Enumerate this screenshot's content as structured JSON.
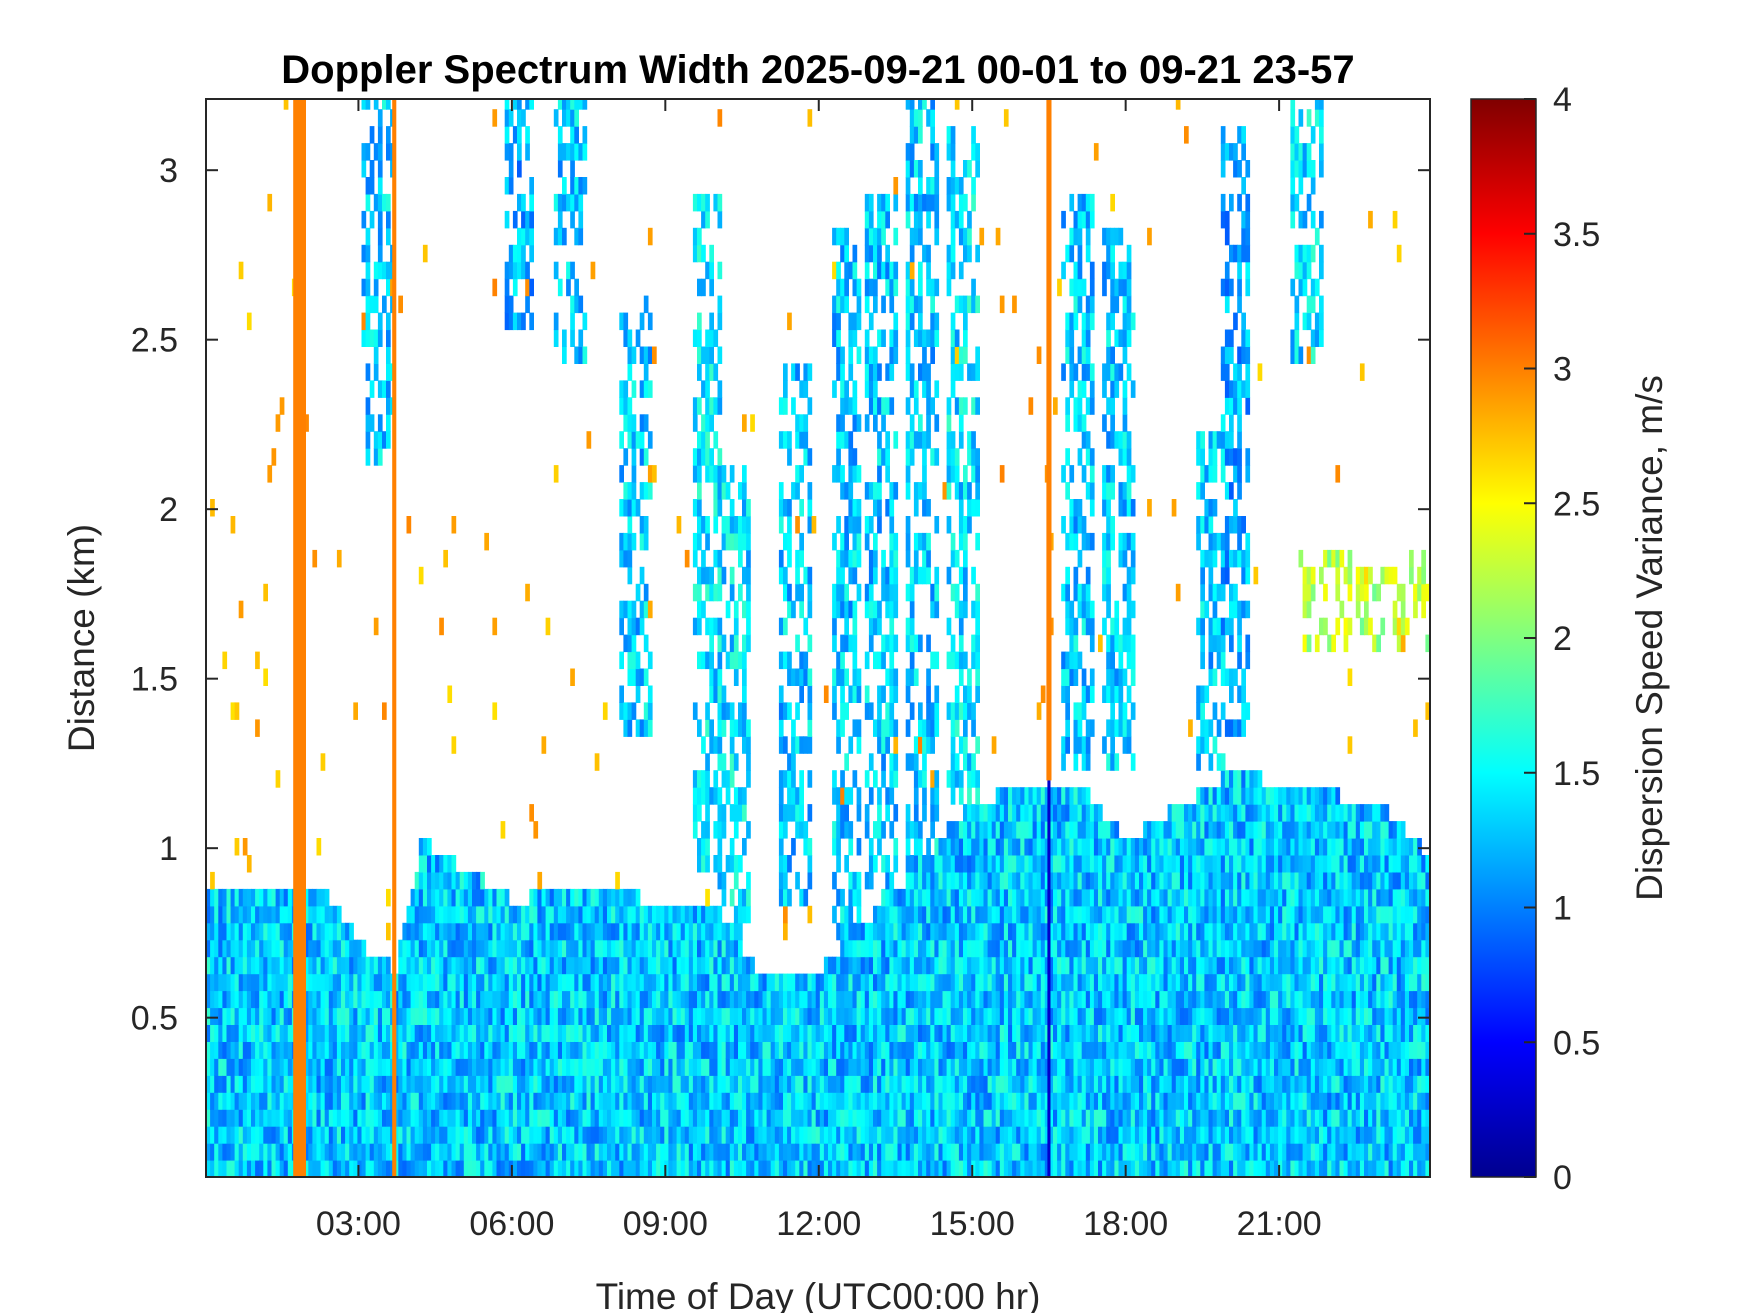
{
  "chart_data": {
    "type": "heatmap",
    "title": "Doppler Spectrum Width 2025-09-21 00-01 to 09-21 23-57",
    "xlabel": "Time of Day (UTC00:00 hr)",
    "ylabel": "Distance (km)",
    "colorbar_label": "Dispersion Speed Variance, m/s",
    "colormap": "jet",
    "xlim_hours": [
      0.02,
      23.95
    ],
    "ylim_km": [
      0.03,
      3.21
    ],
    "clim": [
      0,
      4
    ],
    "x_ticks": [
      {
        "value": 3,
        "label": "03:00"
      },
      {
        "value": 6,
        "label": "06:00"
      },
      {
        "value": 9,
        "label": "09:00"
      },
      {
        "value": 12,
        "label": "12:00"
      },
      {
        "value": 15,
        "label": "15:00"
      },
      {
        "value": 18,
        "label": "18:00"
      },
      {
        "value": 21,
        "label": "21:00"
      }
    ],
    "y_ticks": [
      {
        "value": 0.5,
        "label": "0.5"
      },
      {
        "value": 1,
        "label": "1"
      },
      {
        "value": 1.5,
        "label": "1.5"
      },
      {
        "value": 2,
        "label": "2"
      },
      {
        "value": 2.5,
        "label": "2.5"
      },
      {
        "value": 3,
        "label": "3"
      }
    ],
    "colorbar_ticks": [
      {
        "value": 0,
        "label": "0"
      },
      {
        "value": 0.5,
        "label": "0.5"
      },
      {
        "value": 1,
        "label": "1"
      },
      {
        "value": 1.5,
        "label": "1.5"
      },
      {
        "value": 2,
        "label": "2"
      },
      {
        "value": 2.5,
        "label": "2.5"
      },
      {
        "value": 3,
        "label": "3"
      },
      {
        "value": 3.5,
        "label": "3.5"
      },
      {
        "value": 4,
        "label": "4"
      }
    ],
    "typical_value_below_boundary_layer": 1.3,
    "boundary_layer_top_km": [
      {
        "t": 0.0,
        "h": 0.88
      },
      {
        "t": 1.5,
        "h": 0.88
      },
      {
        "t": 2.3,
        "h": 0.84
      },
      {
        "t": 3.2,
        "h": 0.66
      },
      {
        "t": 3.7,
        "h": 0.62
      },
      {
        "t": 4.2,
        "h": 1.0
      },
      {
        "t": 5.0,
        "h": 0.92
      },
      {
        "t": 6.0,
        "h": 0.82
      },
      {
        "t": 7.0,
        "h": 0.85
      },
      {
        "t": 8.0,
        "h": 0.87
      },
      {
        "t": 9.0,
        "h": 0.78
      },
      {
        "t": 10.0,
        "h": 0.8
      },
      {
        "t": 10.8,
        "h": 0.6
      },
      {
        "t": 12.0,
        "h": 0.62
      },
      {
        "t": 13.5,
        "h": 0.85
      },
      {
        "t": 15.0,
        "h": 1.12
      },
      {
        "t": 17.0,
        "h": 1.17
      },
      {
        "t": 18.0,
        "h": 1.0
      },
      {
        "t": 19.0,
        "h": 1.1
      },
      {
        "t": 20.0,
        "h": 1.2
      },
      {
        "t": 21.5,
        "h": 1.15
      },
      {
        "t": 23.0,
        "h": 1.1
      },
      {
        "t": 23.95,
        "h": 0.95
      }
    ],
    "cloud_plumes": [
      {
        "t": 3.35,
        "y1": 2.1,
        "y2": 3.21,
        "v": 1.3
      },
      {
        "t": 6.1,
        "y1": 2.5,
        "y2": 3.21,
        "v": 1.2
      },
      {
        "t": 7.1,
        "y1": 2.4,
        "y2": 3.21,
        "v": 1.3
      },
      {
        "t": 8.4,
        "y1": 1.3,
        "y2": 2.6,
        "v": 1.3
      },
      {
        "t": 9.8,
        "y1": 0.9,
        "y2": 2.9,
        "v": 1.4
      },
      {
        "t": 10.3,
        "y1": 0.7,
        "y2": 2.1,
        "v": 1.4
      },
      {
        "t": 11.5,
        "y1": 0.8,
        "y2": 2.4,
        "v": 1.3
      },
      {
        "t": 12.5,
        "y1": 0.7,
        "y2": 2.8,
        "v": 1.3
      },
      {
        "t": 13.2,
        "y1": 0.7,
        "y2": 2.9,
        "v": 1.3
      },
      {
        "t": 14.0,
        "y1": 0.9,
        "y2": 3.21,
        "v": 1.3
      },
      {
        "t": 14.8,
        "y1": 1.1,
        "y2": 3.1,
        "v": 1.4
      },
      {
        "t": 17.0,
        "y1": 1.2,
        "y2": 2.9,
        "v": 1.3
      },
      {
        "t": 17.8,
        "y1": 1.2,
        "y2": 2.8,
        "v": 1.3
      },
      {
        "t": 19.6,
        "y1": 1.2,
        "y2": 2.2,
        "v": 1.3
      },
      {
        "t": 20.1,
        "y1": 1.3,
        "y2": 3.1,
        "v": 1.2
      },
      {
        "t": 21.5,
        "y1": 2.4,
        "y2": 3.21,
        "v": 1.4
      }
    ],
    "aloft_patch": {
      "t1": 21.3,
      "t2": 23.95,
      "y1": 1.55,
      "y2": 1.85,
      "v": 2.2
    },
    "vertical_artifact_lines": [
      {
        "t": 1.85,
        "width_hours": 0.25,
        "y1": 0.03,
        "y2": 3.21,
        "v": 3.0
      },
      {
        "t": 3.7,
        "width_hours": 0.08,
        "y1": 0.03,
        "y2": 3.21,
        "v": 3.0
      },
      {
        "t": 16.5,
        "width_hours": 0.1,
        "y1": 1.2,
        "y2": 3.21,
        "v": 3.0
      },
      {
        "t": 16.5,
        "width_hours": 0.06,
        "y1": 0.03,
        "y2": 1.2,
        "v": 0.3
      }
    ]
  }
}
